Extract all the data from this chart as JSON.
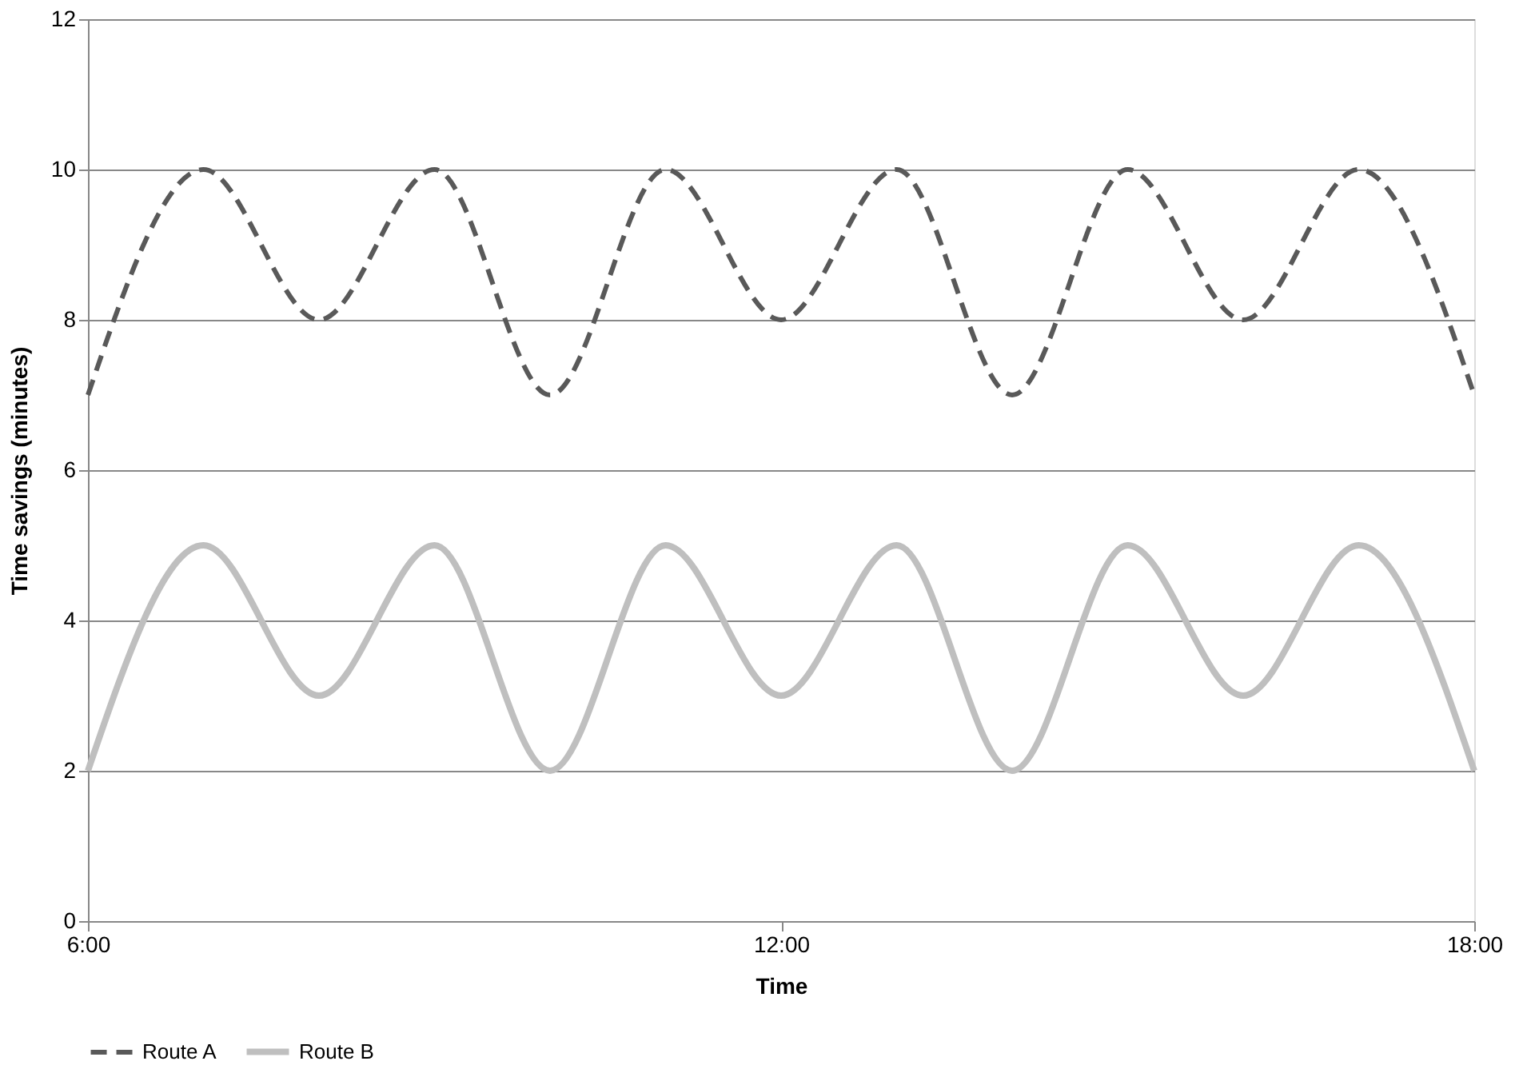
{
  "chart_data": {
    "type": "line",
    "xlabel": "Time",
    "ylabel": "Time savings (minutes)",
    "x": [
      6,
      7,
      8,
      9,
      10,
      11,
      12,
      13,
      14,
      15,
      16,
      17,
      18
    ],
    "series": [
      {
        "name": "Route A",
        "color": "#595959",
        "line_style": "dashed",
        "values": [
          7,
          10,
          8,
          10,
          7,
          10,
          8,
          10,
          7,
          10,
          8,
          10,
          7
        ]
      },
      {
        "name": "Route B",
        "color": "#bfbfbf",
        "line_style": "solid",
        "values": [
          2,
          5,
          3,
          5,
          2,
          5,
          3,
          5,
          2,
          5,
          3,
          5,
          2
        ]
      }
    ],
    "xlim": [
      6,
      18
    ],
    "xticks": [
      {
        "value": 6,
        "label": "6:00"
      },
      {
        "value": 12,
        "label": "12:00"
      },
      {
        "value": 18,
        "label": "18:00"
      }
    ],
    "ylim": [
      0,
      12
    ],
    "yticks": [
      0,
      2,
      4,
      6,
      8,
      10,
      12
    ],
    "grid": "y",
    "legend": "bottom",
    "marker": "none"
  }
}
